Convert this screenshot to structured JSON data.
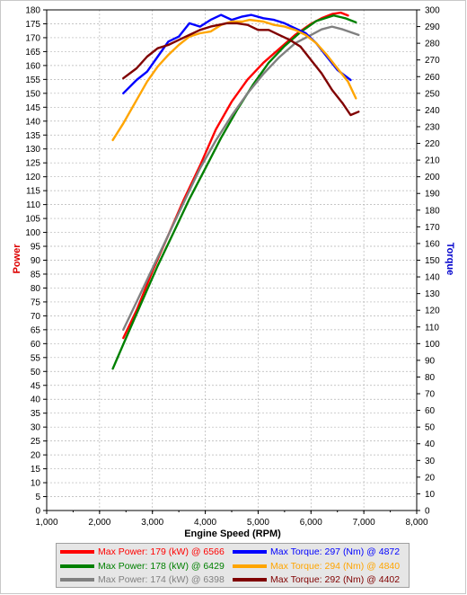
{
  "chart_data": {
    "type": "line",
    "title": "",
    "xlabel": "Engine Speed (RPM)",
    "ylabel_left": "Power",
    "ylabel_right": "Torque",
    "xlim": [
      1000,
      8000
    ],
    "ylim_left": [
      0,
      180
    ],
    "ylim_right": [
      0,
      300
    ],
    "x_ticks": [
      "1,000",
      "2,000",
      "3,000",
      "4,000",
      "5,000",
      "6,000",
      "7,000",
      "8,000"
    ],
    "grid": true,
    "series": [
      {
        "name": "Max Power: 179 (kW) @ 6566",
        "axis": "left",
        "color": "#ff0000",
        "x": [
          2450,
          2700,
          3000,
          3300,
          3600,
          3900,
          4200,
          4500,
          4800,
          5100,
          5400,
          5700,
          6000,
          6200,
          6400,
          6566,
          6700
        ],
        "y": [
          62,
          72,
          86,
          99,
          112,
          124,
          137,
          147,
          155,
          161,
          166,
          171,
          175,
          177,
          178.5,
          179,
          178
        ]
      },
      {
        "name": "Max Power: 178 (kW) @ 6429",
        "axis": "left",
        "color": "#008000",
        "x": [
          2250,
          2500,
          2800,
          3100,
          3400,
          3700,
          4000,
          4300,
          4600,
          4900,
          5200,
          5500,
          5800,
          6100,
          6429,
          6650,
          6850
        ],
        "y": [
          51,
          62,
          75,
          88,
          100,
          112,
          123,
          134,
          144,
          153,
          161,
          167,
          172,
          176,
          178,
          177,
          175.5
        ]
      },
      {
        "name": "Max Power: 174 (kW) @ 6398",
        "axis": "left",
        "color": "#808080",
        "x": [
          2450,
          2700,
          3000,
          3300,
          3600,
          3900,
          4200,
          4500,
          4800,
          5100,
          5400,
          5700,
          6000,
          6200,
          6398,
          6600,
          6900
        ],
        "y": [
          65,
          75,
          87,
          99,
          111,
          123,
          133,
          142,
          150,
          157,
          163,
          168,
          171,
          173,
          174,
          173,
          171
        ]
      },
      {
        "name": "Max Torque: 297 (Nm) @ 4872",
        "axis": "right",
        "color": "#0000ff",
        "x": [
          2450,
          2700,
          2900,
          3100,
          3300,
          3500,
          3700,
          3900,
          4100,
          4300,
          4500,
          4700,
          4872,
          5100,
          5300,
          5500,
          5700,
          5900,
          6100,
          6300,
          6500,
          6750
        ],
        "y": [
          250,
          258,
          263,
          272,
          281,
          284,
          292,
          290,
          294,
          297,
          294,
          296,
          297,
          295,
          294,
          292,
          289,
          286,
          280,
          272,
          264,
          258
        ]
      },
      {
        "name": "Max Torque: 294 (Nm) @ 4840",
        "axis": "right",
        "color": "#ffa500",
        "x": [
          2250,
          2450,
          2700,
          2900,
          3100,
          3300,
          3500,
          3700,
          3900,
          4100,
          4300,
          4500,
          4700,
          4840,
          5100,
          5300,
          5500,
          5700,
          5900,
          6100,
          6300,
          6500,
          6700,
          6850
        ],
        "y": [
          222,
          232,
          246,
          257,
          266,
          273,
          279,
          284,
          286,
          287,
          291,
          293,
          293,
          294,
          293,
          291,
          290,
          288,
          285,
          280,
          273,
          265,
          257,
          247
        ]
      },
      {
        "name": "Max Torque: 292 (Nm) @ 4402",
        "axis": "right",
        "color": "#800000",
        "x": [
          2450,
          2700,
          2900,
          3100,
          3300,
          3500,
          3700,
          3900,
          4100,
          4402,
          4600,
          4800,
          5000,
          5200,
          5400,
          5600,
          5800,
          6000,
          6200,
          6400,
          6600,
          6750,
          6900
        ],
        "y": [
          259,
          265,
          272,
          277,
          279,
          282,
          285,
          288,
          290,
          292,
          292,
          291,
          288,
          288,
          285,
          282,
          278,
          270,
          262,
          252,
          244,
          237,
          239
        ]
      }
    ]
  }
}
